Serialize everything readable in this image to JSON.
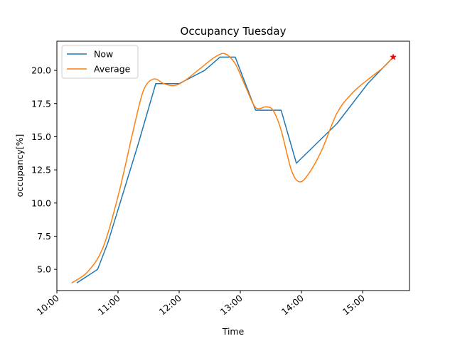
{
  "chart_data": {
    "type": "line",
    "title": "Occupancy Tuesday",
    "xlabel": "Time",
    "ylabel": "occupancy[%]",
    "xlim": [
      "10:00",
      "15:46"
    ],
    "ylim": [
      3.4,
      22.2
    ],
    "x_ticks": [
      "10:00",
      "11:00",
      "12:00",
      "13:00",
      "14:00",
      "15:00"
    ],
    "y_ticks": [
      "5.0",
      "7.5",
      "10.0",
      "12.5",
      "15.0",
      "17.5",
      "20.0"
    ],
    "grid": false,
    "legend": {
      "placement": "top-left",
      "entries": [
        "Now",
        "Average"
      ]
    },
    "colors": {
      "Now": "#1f77b4",
      "Average": "#ff7f0e",
      "marker": "#ff0000"
    },
    "series": [
      {
        "name": "Now",
        "style": "straight",
        "points": [
          [
            "10:20",
            4.0
          ],
          [
            "10:40",
            5.0
          ],
          [
            "10:50",
            7.0
          ],
          [
            "11:20",
            14.5
          ],
          [
            "11:37",
            19.0
          ],
          [
            "12:00",
            19.0
          ],
          [
            "12:25",
            20.0
          ],
          [
            "12:40",
            21.0
          ],
          [
            "12:55",
            21.0
          ],
          [
            "13:15",
            17.0
          ],
          [
            "13:40",
            17.0
          ],
          [
            "13:55",
            13.0
          ],
          [
            "14:35",
            16.0
          ],
          [
            "15:05",
            19.0
          ],
          [
            "15:30",
            21.0
          ]
        ]
      },
      {
        "name": "Average",
        "style": "smooth",
        "points": [
          [
            "10:15",
            4.0
          ],
          [
            "10:30",
            4.8
          ],
          [
            "10:45",
            6.6
          ],
          [
            "11:00",
            10.5
          ],
          [
            "11:15",
            15.5
          ],
          [
            "11:25",
            18.5
          ],
          [
            "11:35",
            19.35
          ],
          [
            "11:45",
            19.0
          ],
          [
            "11:55",
            18.85
          ],
          [
            "12:05",
            19.2
          ],
          [
            "12:20",
            20.1
          ],
          [
            "12:35",
            21.0
          ],
          [
            "12:45",
            21.25
          ],
          [
            "12:55",
            20.5
          ],
          [
            "13:05",
            18.8
          ],
          [
            "13:15",
            17.2
          ],
          [
            "13:25",
            17.25
          ],
          [
            "13:32",
            17.0
          ],
          [
            "13:40",
            15.5
          ],
          [
            "13:50",
            12.5
          ],
          [
            "13:58",
            11.6
          ],
          [
            "14:07",
            12.2
          ],
          [
            "14:20",
            14.0
          ],
          [
            "14:35",
            16.8
          ],
          [
            "14:50",
            18.3
          ],
          [
            "15:05",
            19.3
          ],
          [
            "15:20",
            20.2
          ],
          [
            "15:30",
            21.0
          ]
        ]
      }
    ],
    "marker": {
      "x": "15:30",
      "y": 21.0,
      "symbol": "star"
    }
  }
}
